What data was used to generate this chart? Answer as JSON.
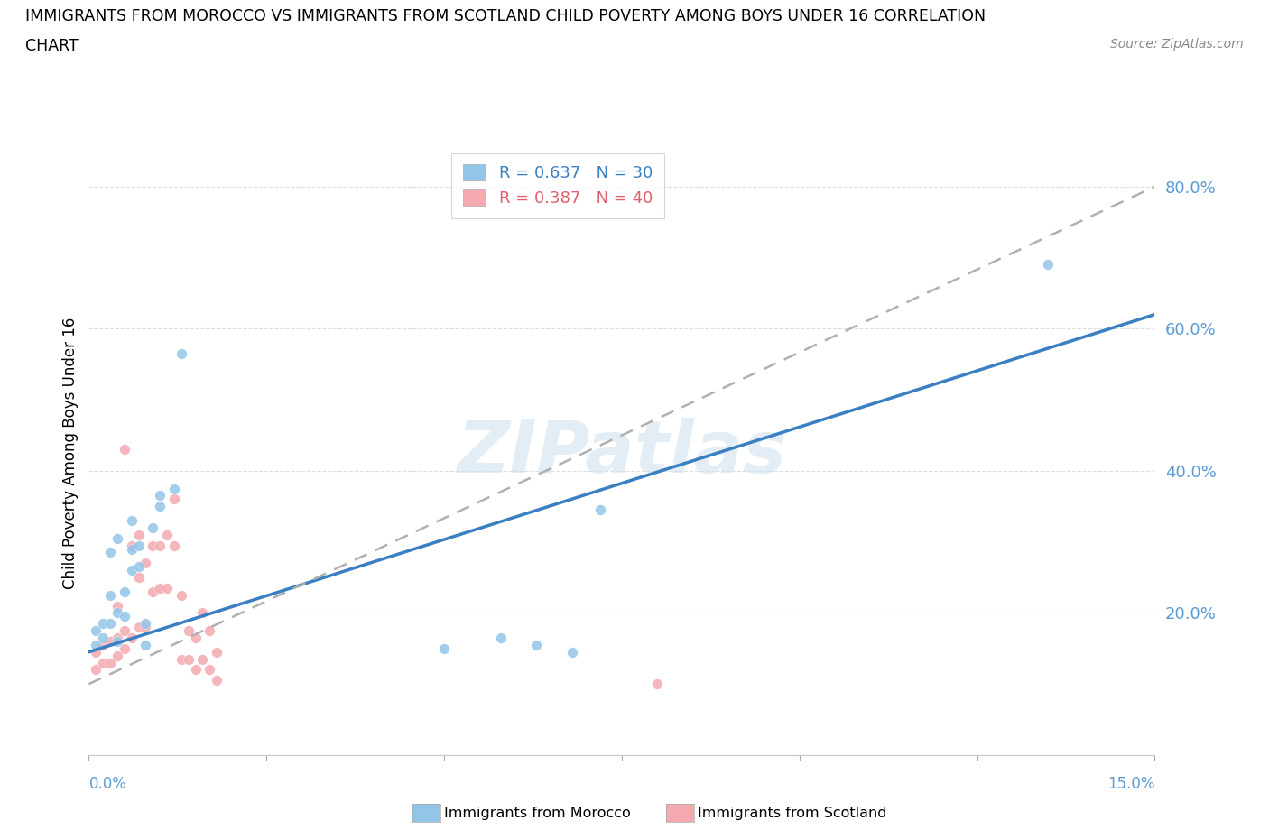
{
  "title_line1": "IMMIGRANTS FROM MOROCCO VS IMMIGRANTS FROM SCOTLAND CHILD POVERTY AMONG BOYS UNDER 16 CORRELATION",
  "title_line2": "CHART",
  "source": "Source: ZipAtlas.com",
  "ylabel": "Child Poverty Among Boys Under 16",
  "ytick_labels": [
    "20.0%",
    "40.0%",
    "60.0%",
    "80.0%"
  ],
  "ytick_values": [
    0.2,
    0.4,
    0.6,
    0.8
  ],
  "xlim": [
    0.0,
    0.15
  ],
  "ylim": [
    0.0,
    0.85
  ],
  "morocco_R": 0.637,
  "morocco_N": 30,
  "scotland_R": 0.387,
  "scotland_N": 40,
  "morocco_color": "#92c5e8",
  "scotland_color": "#f4a9b0",
  "morocco_line_color": "#3a7fc1",
  "scotland_line_color": "#b0b0b0",
  "watermark_color": "#ccdff0",
  "morocco_x": [
    0.001,
    0.001,
    0.002,
    0.002,
    0.003,
    0.003,
    0.003,
    0.004,
    0.004,
    0.004,
    0.005,
    0.005,
    0.006,
    0.006,
    0.006,
    0.007,
    0.007,
    0.008,
    0.008,
    0.009,
    0.01,
    0.01,
    0.012,
    0.013,
    0.05,
    0.058,
    0.063,
    0.068,
    0.072,
    0.135
  ],
  "morocco_y": [
    0.155,
    0.175,
    0.165,
    0.185,
    0.185,
    0.225,
    0.285,
    0.16,
    0.2,
    0.305,
    0.195,
    0.23,
    0.26,
    0.29,
    0.33,
    0.265,
    0.295,
    0.155,
    0.185,
    0.32,
    0.35,
    0.365,
    0.375,
    0.565,
    0.15,
    0.165,
    0.155,
    0.145,
    0.345,
    0.69
  ],
  "scotland_x": [
    0.001,
    0.001,
    0.002,
    0.002,
    0.003,
    0.003,
    0.004,
    0.004,
    0.004,
    0.005,
    0.005,
    0.005,
    0.006,
    0.006,
    0.007,
    0.007,
    0.007,
    0.008,
    0.008,
    0.009,
    0.009,
    0.01,
    0.01,
    0.011,
    0.011,
    0.012,
    0.012,
    0.013,
    0.013,
    0.014,
    0.014,
    0.015,
    0.015,
    0.016,
    0.016,
    0.017,
    0.017,
    0.018,
    0.018,
    0.08
  ],
  "scotland_y": [
    0.12,
    0.145,
    0.13,
    0.155,
    0.13,
    0.16,
    0.14,
    0.165,
    0.21,
    0.15,
    0.175,
    0.43,
    0.165,
    0.295,
    0.18,
    0.25,
    0.31,
    0.18,
    0.27,
    0.23,
    0.295,
    0.235,
    0.295,
    0.235,
    0.31,
    0.295,
    0.36,
    0.135,
    0.225,
    0.135,
    0.175,
    0.12,
    0.165,
    0.135,
    0.2,
    0.12,
    0.175,
    0.105,
    0.145,
    0.1
  ],
  "morocco_trendline_x0": 0.0,
  "morocco_trendline_y0": 0.145,
  "morocco_trendline_x1": 0.15,
  "morocco_trendline_y1": 0.62,
  "scotland_trendline_x0": 0.0,
  "scotland_trendline_y0": 0.1,
  "scotland_trendline_x1": 0.15,
  "scotland_trendline_y1": 0.8
}
